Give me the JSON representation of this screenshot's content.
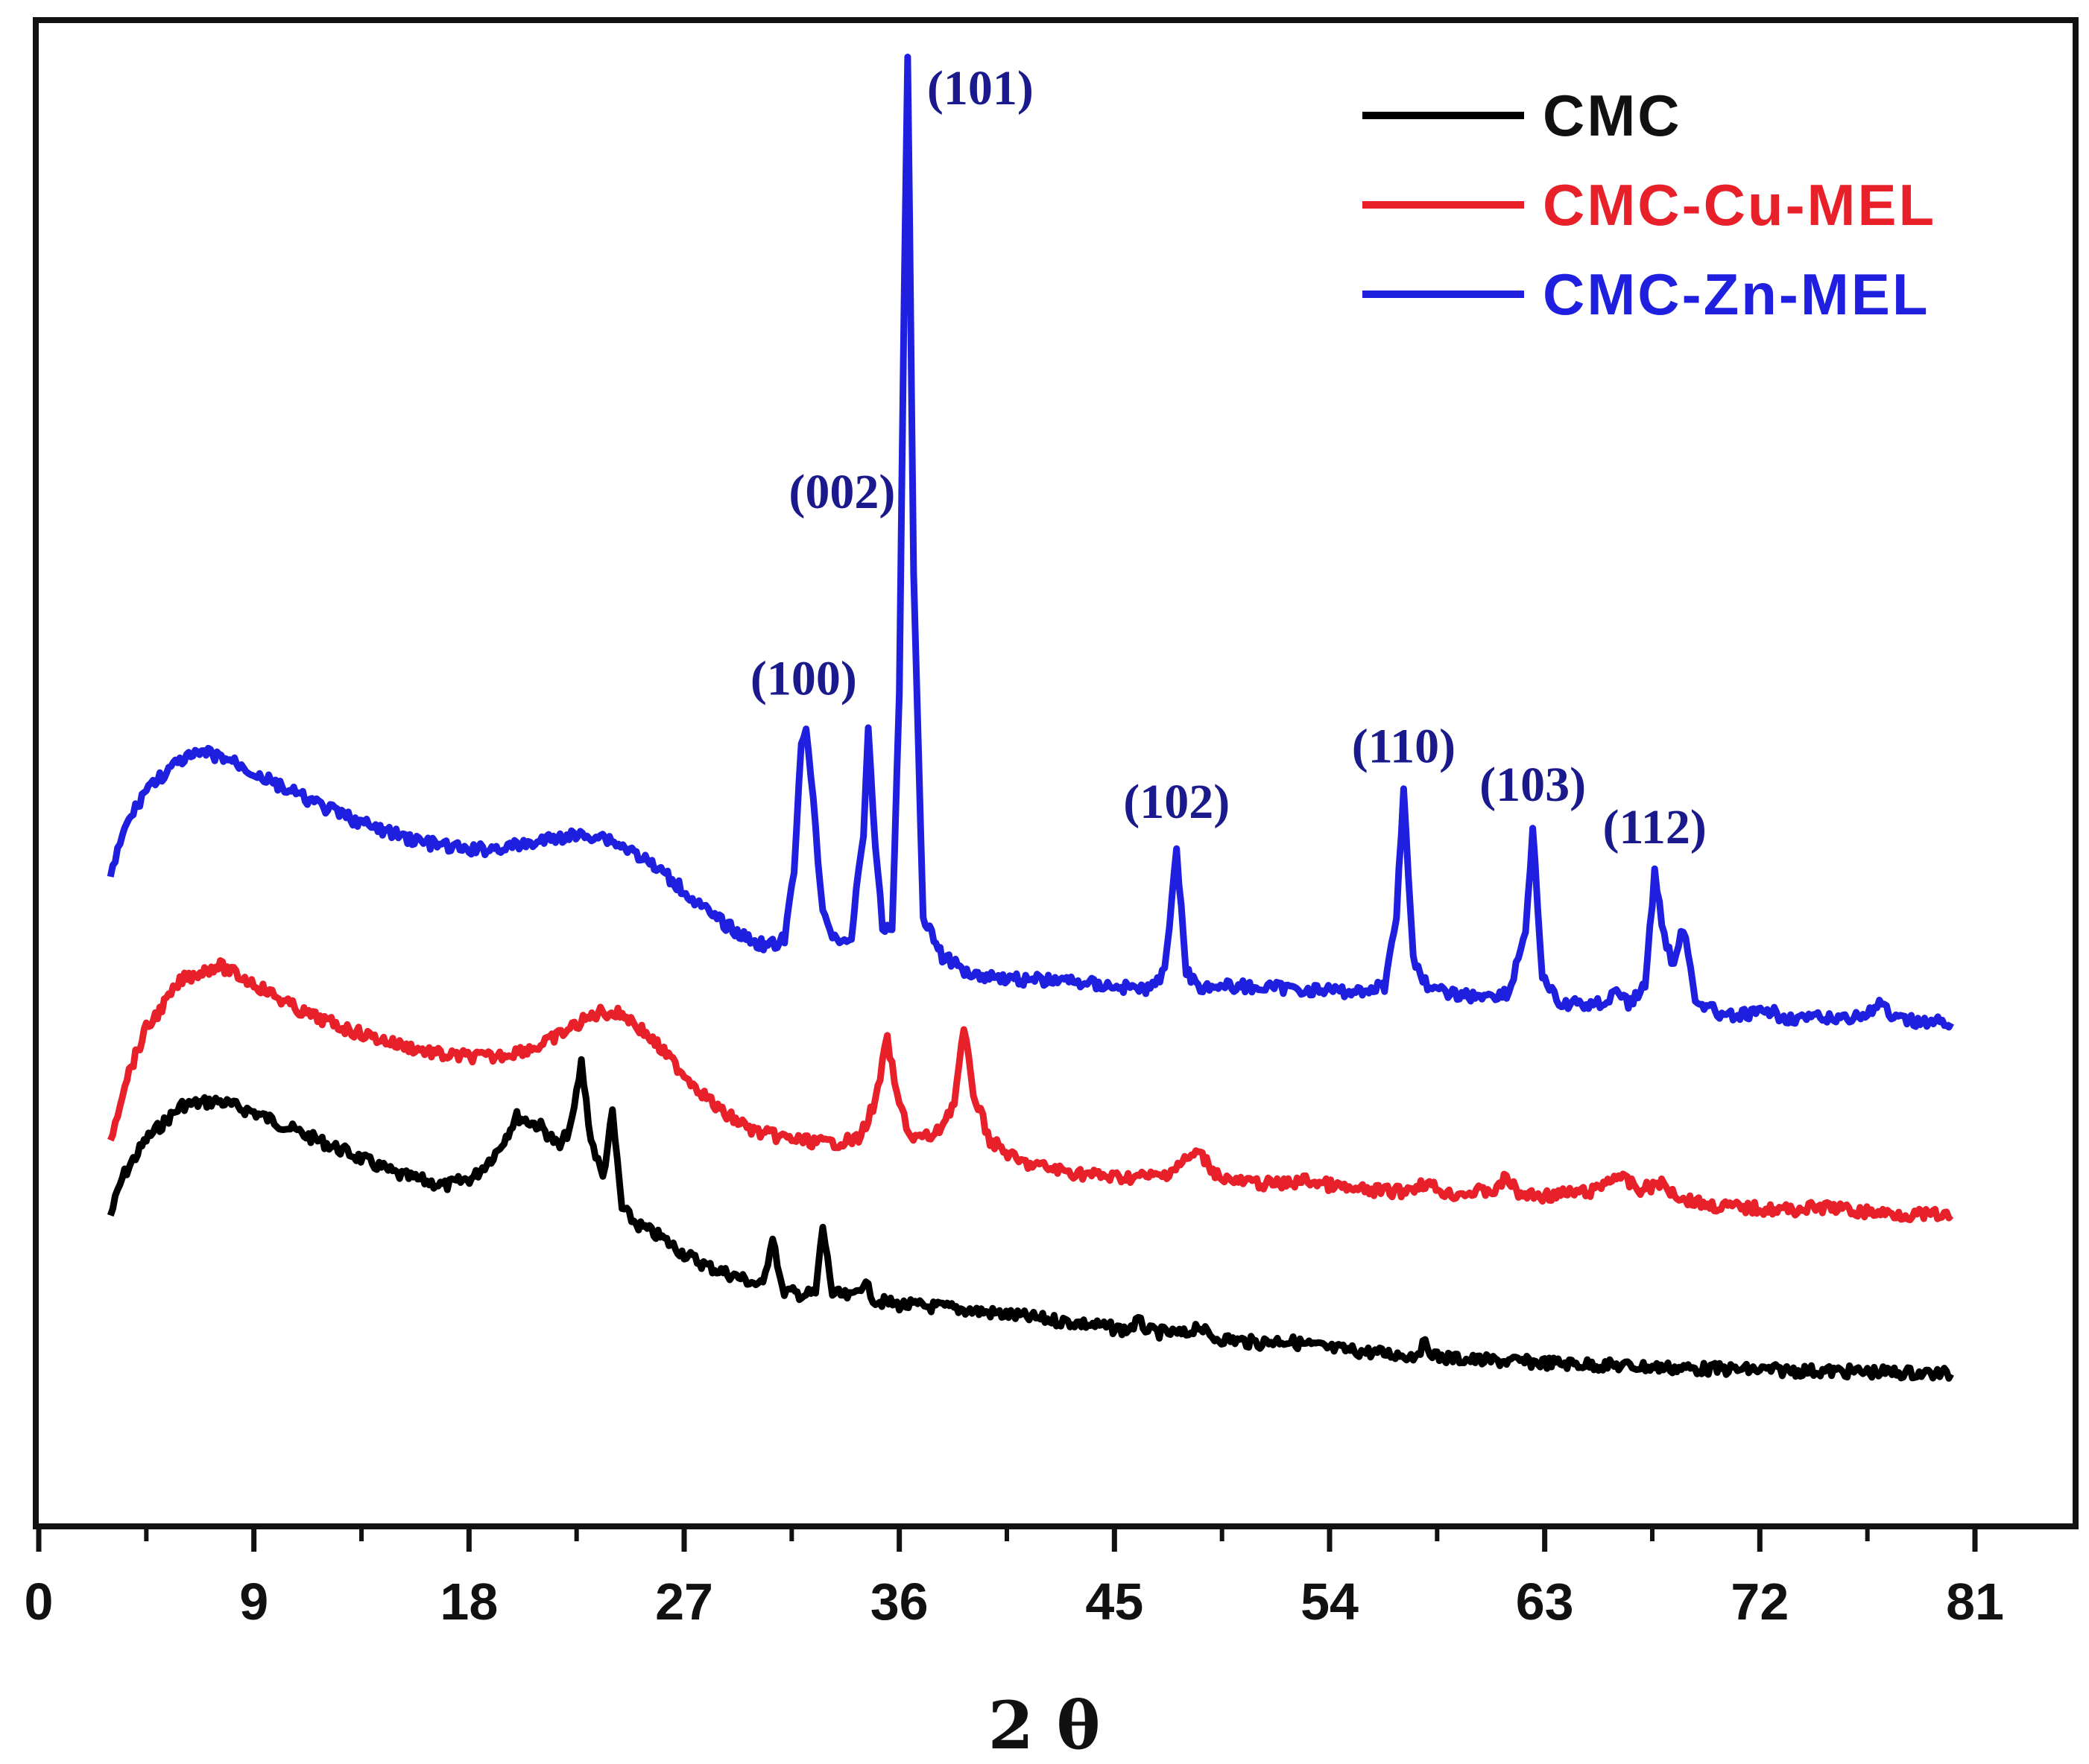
{
  "chart_data": {
    "type": "line",
    "title": "",
    "xlabel": "2 θ",
    "ylabel": "",
    "xlim": [
      0,
      81
    ],
    "ylim": [
      0,
      1
    ],
    "grid": false,
    "legend_position": "top-right",
    "x_ticks": [
      0,
      9,
      18,
      27,
      36,
      45,
      54,
      63,
      72,
      81
    ],
    "x_tick_labels": [
      "0",
      "9",
      "18",
      "27",
      "36",
      "45",
      "54",
      "63",
      "72",
      "81"
    ],
    "series": [
      {
        "name": "CMC",
        "color": "#000000",
        "points": [
          [
            3,
            0.178
          ],
          [
            3.5,
            0.205
          ],
          [
            4.5,
            0.232
          ],
          [
            6,
            0.256
          ],
          [
            7.5,
            0.259
          ],
          [
            9,
            0.251
          ],
          [
            11,
            0.236
          ],
          [
            13,
            0.222
          ],
          [
            15,
            0.207
          ],
          [
            17,
            0.199
          ],
          [
            18.2,
            0.205
          ],
          [
            19.2,
            0.224
          ],
          [
            20,
            0.248
          ],
          [
            21,
            0.241
          ],
          [
            21.8,
            0.226
          ],
          [
            22.3,
            0.243
          ],
          [
            22.7,
            0.286
          ],
          [
            23.1,
            0.232
          ],
          [
            23.6,
            0.205
          ],
          [
            24,
            0.25
          ],
          [
            24.4,
            0.183
          ],
          [
            25,
            0.172
          ],
          [
            26,
            0.163
          ],
          [
            27,
            0.151
          ],
          [
            28,
            0.142
          ],
          [
            29,
            0.136
          ],
          [
            30,
            0.13
          ],
          [
            30.3,
            0.128
          ],
          [
            30.7,
            0.165
          ],
          [
            31.1,
            0.125
          ],
          [
            32,
            0.122
          ],
          [
            32.5,
            0.123
          ],
          [
            32.8,
            0.17
          ],
          [
            33.2,
            0.123
          ],
          [
            34,
            0.12
          ],
          [
            34.5,
            0.131
          ],
          [
            35,
            0.118
          ],
          [
            36,
            0.115
          ],
          [
            38,
            0.113
          ],
          [
            40,
            0.109
          ],
          [
            42,
            0.105
          ],
          [
            44,
            0.101
          ],
          [
            45.5,
            0.097
          ],
          [
            46,
            0.103
          ],
          [
            46.5,
            0.096
          ],
          [
            48,
            0.094
          ],
          [
            48.5,
            0.101
          ],
          [
            49,
            0.092
          ],
          [
            51,
            0.088
          ],
          [
            52,
            0.09
          ],
          [
            54,
            0.084
          ],
          [
            56,
            0.081
          ],
          [
            57.5,
            0.079
          ],
          [
            58,
            0.087
          ],
          [
            58.5,
            0.078
          ],
          [
            60,
            0.076
          ],
          [
            63,
            0.074
          ],
          [
            66,
            0.072
          ],
          [
            69,
            0.07
          ],
          [
            72,
            0.069
          ],
          [
            75,
            0.068
          ],
          [
            78,
            0.067
          ],
          [
            80,
            0.066
          ]
        ]
      },
      {
        "name": "CMC-Cu-MEL",
        "color": "#e8202a",
        "points": [
          [
            3,
            0.231
          ],
          [
            3.6,
            0.272
          ],
          [
            4.5,
            0.31
          ],
          [
            6,
            0.345
          ],
          [
            7.5,
            0.355
          ],
          [
            9,
            0.342
          ],
          [
            11,
            0.322
          ],
          [
            13,
            0.309
          ],
          [
            15,
            0.299
          ],
          [
            17,
            0.291
          ],
          [
            19,
            0.29
          ],
          [
            21,
            0.298
          ],
          [
            22.5,
            0.313
          ],
          [
            23.5,
            0.322
          ],
          [
            24.5,
            0.32
          ],
          [
            25.5,
            0.305
          ],
          [
            27,
            0.278
          ],
          [
            28.5,
            0.252
          ],
          [
            30,
            0.237
          ],
          [
            31.5,
            0.232
          ],
          [
            33,
            0.229
          ],
          [
            34.3,
            0.232
          ],
          [
            35,
            0.258
          ],
          [
            35.5,
            0.303
          ],
          [
            35.9,
            0.262
          ],
          [
            36.5,
            0.233
          ],
          [
            37.5,
            0.234
          ],
          [
            38.3,
            0.258
          ],
          [
            38.7,
            0.309
          ],
          [
            39.1,
            0.265
          ],
          [
            39.8,
            0.231
          ],
          [
            41,
            0.216
          ],
          [
            43,
            0.209
          ],
          [
            45,
            0.205
          ],
          [
            47,
            0.206
          ],
          [
            48.5,
            0.223
          ],
          [
            49.3,
            0.207
          ],
          [
            50,
            0.202
          ],
          [
            52,
            0.2
          ],
          [
            53,
            0.203
          ],
          [
            55,
            0.196
          ],
          [
            57,
            0.195
          ],
          [
            58,
            0.201
          ],
          [
            59,
            0.193
          ],
          [
            61,
            0.196
          ],
          [
            61.4,
            0.206
          ],
          [
            61.9,
            0.193
          ],
          [
            63,
            0.192
          ],
          [
            65,
            0.195
          ],
          [
            66,
            0.207
          ],
          [
            67,
            0.196
          ],
          [
            67.8,
            0.201
          ],
          [
            68.8,
            0.19
          ],
          [
            70,
            0.185
          ],
          [
            73,
            0.182
          ],
          [
            75,
            0.184
          ],
          [
            76,
            0.181
          ],
          [
            78,
            0.179
          ],
          [
            80,
            0.178
          ]
        ]
      },
      {
        "name": "CMC-Zn-MEL",
        "color": "#1f1fe0",
        "points": [
          [
            3,
            0.415
          ],
          [
            3.5,
            0.448
          ],
          [
            4.5,
            0.48
          ],
          [
            6,
            0.5
          ],
          [
            7,
            0.505
          ],
          [
            8,
            0.5
          ],
          [
            10,
            0.482
          ],
          [
            12,
            0.466
          ],
          [
            14,
            0.452
          ],
          [
            16,
            0.442
          ],
          [
            18,
            0.436
          ],
          [
            20,
            0.439
          ],
          [
            22,
            0.446
          ],
          [
            23.5,
            0.447
          ],
          [
            25,
            0.434
          ],
          [
            26.5,
            0.415
          ],
          [
            28,
            0.392
          ],
          [
            29.5,
            0.375
          ],
          [
            30.5,
            0.368
          ],
          [
            31.2,
            0.373
          ],
          [
            31.6,
            0.42
          ],
          [
            31.9,
            0.514
          ],
          [
            32.1,
            0.525
          ],
          [
            32.4,
            0.47
          ],
          [
            32.8,
            0.39
          ],
          [
            33.4,
            0.372
          ],
          [
            34,
            0.375
          ],
          [
            34.5,
            0.45
          ],
          [
            34.7,
            0.52
          ],
          [
            34.9,
            0.46
          ],
          [
            35.3,
            0.382
          ],
          [
            35.7,
            0.38
          ],
          [
            36,
            0.55
          ],
          [
            36.2,
            0.822
          ],
          [
            36.35,
            1.0
          ],
          [
            36.6,
            0.63
          ],
          [
            37,
            0.39
          ],
          [
            37.8,
            0.361
          ],
          [
            39,
            0.349
          ],
          [
            41,
            0.345
          ],
          [
            43,
            0.344
          ],
          [
            45,
            0.34
          ],
          [
            46.5,
            0.338
          ],
          [
            47.1,
            0.35
          ],
          [
            47.6,
            0.438
          ],
          [
            48,
            0.35
          ],
          [
            48.6,
            0.34
          ],
          [
            50,
            0.34
          ],
          [
            53,
            0.338
          ],
          [
            55,
            0.336
          ],
          [
            56.3,
            0.34
          ],
          [
            56.8,
            0.392
          ],
          [
            57.1,
            0.477
          ],
          [
            57.5,
            0.36
          ],
          [
            58.2,
            0.337
          ],
          [
            60,
            0.333
          ],
          [
            61.5,
            0.335
          ],
          [
            62.2,
            0.38
          ],
          [
            62.5,
            0.45
          ],
          [
            62.9,
            0.347
          ],
          [
            63.6,
            0.327
          ],
          [
            65.5,
            0.328
          ],
          [
            66,
            0.339
          ],
          [
            66.5,
            0.327
          ],
          [
            67.2,
            0.34
          ],
          [
            67.6,
            0.42
          ],
          [
            68,
            0.375
          ],
          [
            68.4,
            0.355
          ],
          [
            68.8,
            0.382
          ],
          [
            69.3,
            0.332
          ],
          [
            70.5,
            0.318
          ],
          [
            72.5,
            0.322
          ],
          [
            73,
            0.318
          ],
          [
            75,
            0.317
          ],
          [
            76.5,
            0.32
          ],
          [
            77.1,
            0.328
          ],
          [
            77.6,
            0.316
          ],
          [
            80,
            0.314
          ]
        ]
      }
    ],
    "annotations": [
      {
        "text": "(100)",
        "x": 32.0
      },
      {
        "text": "(002)",
        "x": 34.9
      },
      {
        "text": "(101)",
        "x": 36.35
      },
      {
        "text": "(102)",
        "x": 47.6
      },
      {
        "text": "(110)",
        "x": 57.1
      },
      {
        "text": "(103)",
        "x": 62.5
      },
      {
        "text": "(112)",
        "x": 67.6
      }
    ]
  }
}
